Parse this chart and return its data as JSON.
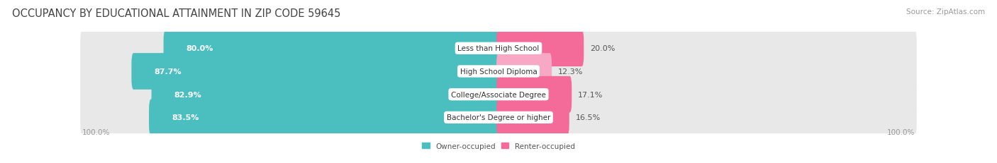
{
  "title": "OCCUPANCY BY EDUCATIONAL ATTAINMENT IN ZIP CODE 59645",
  "source": "Source: ZipAtlas.com",
  "categories": [
    "Less than High School",
    "High School Diploma",
    "College/Associate Degree",
    "Bachelor's Degree or higher"
  ],
  "owner_values": [
    80.0,
    87.7,
    82.9,
    83.5
  ],
  "renter_values": [
    20.0,
    12.3,
    17.1,
    16.5
  ],
  "owner_color": "#4BBFBF",
  "renter_color": "#F46A99",
  "renter_color_light": "#F8A8C4",
  "background_color": "#FFFFFF",
  "bar_background": "#E8E8E8",
  "title_fontsize": 10.5,
  "source_fontsize": 7.5,
  "bar_label_fontsize": 8.0,
  "cat_label_fontsize": 7.5,
  "axis_label_left": "100.0%",
  "axis_label_right": "100.0%",
  "legend_owner": "Owner-occupied",
  "legend_renter": "Renter-occupied"
}
